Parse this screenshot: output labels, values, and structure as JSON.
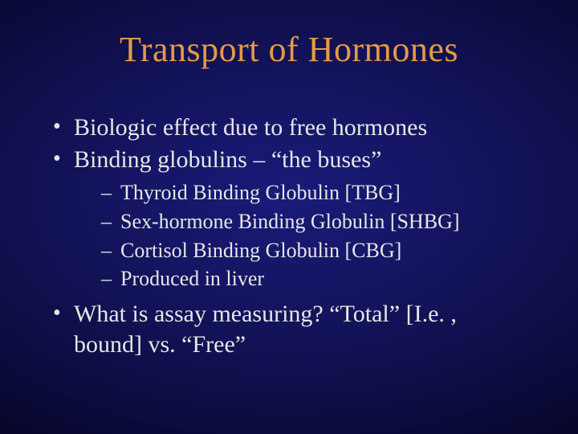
{
  "colors": {
    "background_center": "#1a1a7a",
    "background_mid": "#0d0d44",
    "background_edge": "#000000",
    "title_color": "#e59a44",
    "text_color": "#e6e6e6",
    "bullet_color": "#e6e6e6"
  },
  "typography": {
    "font_family": "Times New Roman",
    "title_fontsize_pt": 33,
    "level1_fontsize_pt": 23,
    "level2_fontsize_pt": 20
  },
  "title": "Transport of Hormones",
  "bullets": [
    {
      "text": "Biologic effect due to free hormones"
    },
    {
      "text": "Binding globulins – “the buses”",
      "children": [
        "Thyroid Binding Globulin [TBG]",
        "Sex-hormone Binding Globulin [SHBG]",
        "Cortisol Binding Globulin [CBG]",
        "Produced in liver"
      ]
    },
    {
      "text": "What is assay measuring? “Total” [I.e. , bound] vs. “Free”"
    }
  ]
}
